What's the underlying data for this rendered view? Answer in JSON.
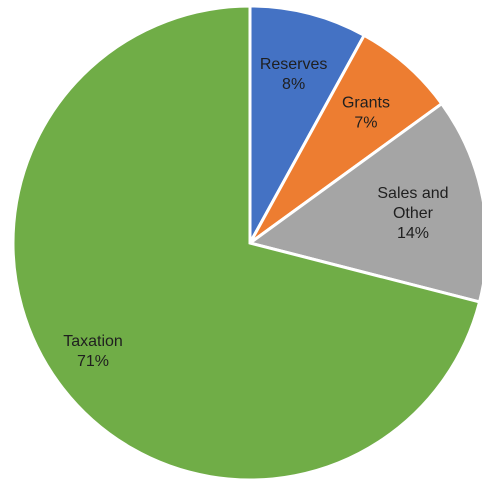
{
  "chart_data": {
    "type": "pie",
    "title": "",
    "start": "12 o'clock",
    "direction": "clockwise",
    "legend": "none",
    "slices": [
      {
        "label": [
          "Reserves"
        ],
        "pct_text": "8%",
        "value": 8,
        "color": "#4472C4",
        "label_color": "#1f1f1f"
      },
      {
        "label": [
          "Grants"
        ],
        "pct_text": "7%",
        "value": 7,
        "color": "#ED7D31",
        "label_color": "#1f1f1f"
      },
      {
        "label": [
          "Sales and",
          "Other"
        ],
        "pct_text": "14%",
        "value": 14,
        "color": "#A5A5A5",
        "label_color": "#1f1f1f"
      },
      {
        "label": [
          "Taxation"
        ],
        "pct_text": "71%",
        "value": 71,
        "color": "#70AD47",
        "label_color": "#1f1f1f"
      }
    ]
  }
}
